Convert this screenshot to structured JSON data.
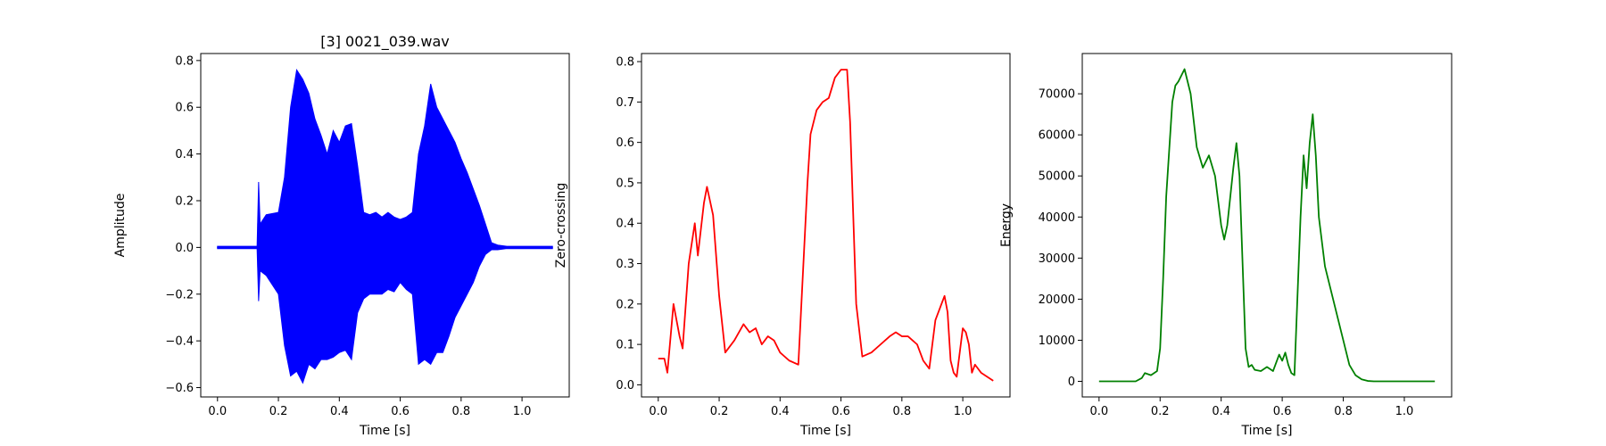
{
  "chart_data": [
    {
      "type": "line",
      "title": "[3] 0021_039.wav",
      "xlabel": "Time [s]",
      "ylabel": "Amplitude",
      "xlim": [
        -0.055,
        1.155
      ],
      "ylim": [
        -0.64,
        0.83
      ],
      "xticks": [
        0.0,
        0.2,
        0.4,
        0.6,
        0.8,
        1.0
      ],
      "xtick_labels": [
        "0.0",
        "0.2",
        "0.4",
        "0.6",
        "0.8",
        "1.0"
      ],
      "yticks": [
        -0.6,
        -0.4,
        -0.2,
        0.0,
        0.2,
        0.4,
        0.6,
        0.8
      ],
      "ytick_labels": [
        "−0.6",
        "−0.4",
        "−0.2",
        "0.0",
        "0.2",
        "0.4",
        "0.6",
        "0.8"
      ],
      "color": "#0000ff",
      "waveform": true,
      "series": [
        {
          "x": [
            0.0,
            0.13,
            0.135,
            0.14,
            0.16,
            0.2,
            0.22,
            0.24,
            0.26,
            0.28,
            0.3,
            0.32,
            0.34,
            0.36,
            0.38,
            0.4,
            0.42,
            0.44,
            0.46,
            0.48,
            0.5,
            0.52,
            0.54,
            0.56,
            0.58,
            0.6,
            0.62,
            0.64,
            0.66,
            0.68,
            0.7,
            0.72,
            0.74,
            0.76,
            0.78,
            0.8,
            0.82,
            0.84,
            0.86,
            0.88,
            0.9,
            0.92,
            0.95,
            1.0,
            1.1
          ],
          "upper": [
            0.005,
            0.005,
            0.28,
            0.1,
            0.14,
            0.15,
            0.3,
            0.6,
            0.76,
            0.72,
            0.66,
            0.55,
            0.48,
            0.4,
            0.5,
            0.45,
            0.52,
            0.53,
            0.35,
            0.15,
            0.14,
            0.15,
            0.13,
            0.15,
            0.13,
            0.12,
            0.13,
            0.15,
            0.4,
            0.52,
            0.7,
            0.6,
            0.55,
            0.5,
            0.45,
            0.38,
            0.32,
            0.25,
            0.18,
            0.1,
            0.02,
            0.01,
            0.005,
            0.005,
            0.005
          ],
          "lower": [
            -0.005,
            -0.005,
            -0.23,
            -0.1,
            -0.12,
            -0.2,
            -0.42,
            -0.55,
            -0.53,
            -0.58,
            -0.5,
            -0.52,
            -0.48,
            -0.48,
            -0.47,
            -0.45,
            -0.44,
            -0.48,
            -0.28,
            -0.22,
            -0.2,
            -0.2,
            -0.2,
            -0.18,
            -0.19,
            -0.15,
            -0.18,
            -0.2,
            -0.5,
            -0.48,
            -0.5,
            -0.45,
            -0.45,
            -0.38,
            -0.3,
            -0.25,
            -0.2,
            -0.15,
            -0.08,
            -0.03,
            -0.01,
            -0.01,
            -0.005,
            -0.005,
            -0.005
          ]
        }
      ]
    },
    {
      "type": "line",
      "title": "",
      "xlabel": "Time [s]",
      "ylabel": "Zero-crossing",
      "xlim": [
        -0.055,
        1.155
      ],
      "ylim": [
        -0.03,
        0.82
      ],
      "xticks": [
        0.0,
        0.2,
        0.4,
        0.6,
        0.8,
        1.0
      ],
      "xtick_labels": [
        "0.0",
        "0.2",
        "0.4",
        "0.6",
        "0.8",
        "1.0"
      ],
      "yticks": [
        0.0,
        0.1,
        0.2,
        0.3,
        0.4,
        0.5,
        0.6,
        0.7,
        0.8
      ],
      "ytick_labels": [
        "0.0",
        "0.1",
        "0.2",
        "0.3",
        "0.4",
        "0.5",
        "0.6",
        "0.7",
        "0.8"
      ],
      "color": "#ff0000",
      "series": [
        {
          "x": [
            0.0,
            0.02,
            0.03,
            0.05,
            0.07,
            0.08,
            0.1,
            0.12,
            0.13,
            0.15,
            0.16,
            0.18,
            0.2,
            0.22,
            0.25,
            0.28,
            0.3,
            0.32,
            0.34,
            0.36,
            0.38,
            0.4,
            0.43,
            0.46,
            0.47,
            0.49,
            0.5,
            0.52,
            0.54,
            0.56,
            0.58,
            0.6,
            0.62,
            0.63,
            0.65,
            0.67,
            0.7,
            0.73,
            0.76,
            0.78,
            0.8,
            0.82,
            0.85,
            0.87,
            0.89,
            0.91,
            0.93,
            0.94,
            0.95,
            0.96,
            0.97,
            0.98,
            1.0,
            1.01,
            1.02,
            1.03,
            1.04,
            1.06,
            1.08,
            1.1
          ],
          "y": [
            0.065,
            0.065,
            0.03,
            0.2,
            0.12,
            0.09,
            0.3,
            0.4,
            0.32,
            0.45,
            0.49,
            0.42,
            0.22,
            0.08,
            0.11,
            0.15,
            0.13,
            0.14,
            0.1,
            0.12,
            0.11,
            0.08,
            0.06,
            0.05,
            0.2,
            0.5,
            0.62,
            0.68,
            0.7,
            0.71,
            0.76,
            0.78,
            0.78,
            0.65,
            0.2,
            0.07,
            0.08,
            0.1,
            0.12,
            0.13,
            0.12,
            0.12,
            0.1,
            0.06,
            0.04,
            0.16,
            0.2,
            0.22,
            0.18,
            0.06,
            0.03,
            0.02,
            0.14,
            0.13,
            0.1,
            0.03,
            0.05,
            0.03,
            0.02,
            0.01
          ]
        }
      ]
    },
    {
      "type": "line",
      "title": "",
      "xlabel": "Time [s]",
      "ylabel": "Energy",
      "xlim": [
        -0.055,
        1.155
      ],
      "ylim": [
        -3800,
        79800
      ],
      "xticks": [
        0.0,
        0.2,
        0.4,
        0.6,
        0.8,
        1.0
      ],
      "xtick_labels": [
        "0.0",
        "0.2",
        "0.4",
        "0.6",
        "0.8",
        "1.0"
      ],
      "yticks": [
        0,
        10000,
        20000,
        30000,
        40000,
        50000,
        60000,
        70000
      ],
      "ytick_labels": [
        "0",
        "10000",
        "20000",
        "30000",
        "40000",
        "50000",
        "60000",
        "70000"
      ],
      "color": "#008000",
      "series": [
        {
          "x": [
            0.0,
            0.12,
            0.14,
            0.15,
            0.17,
            0.19,
            0.2,
            0.21,
            0.22,
            0.24,
            0.25,
            0.26,
            0.28,
            0.3,
            0.32,
            0.34,
            0.36,
            0.38,
            0.4,
            0.41,
            0.42,
            0.44,
            0.45,
            0.46,
            0.48,
            0.49,
            0.5,
            0.51,
            0.53,
            0.55,
            0.57,
            0.59,
            0.6,
            0.61,
            0.62,
            0.63,
            0.64,
            0.66,
            0.67,
            0.68,
            0.69,
            0.7,
            0.71,
            0.72,
            0.74,
            0.76,
            0.78,
            0.8,
            0.82,
            0.84,
            0.86,
            0.88,
            0.9,
            1.0,
            1.1
          ],
          "y": [
            0,
            0,
            800,
            2000,
            1500,
            2500,
            8000,
            25000,
            45000,
            68000,
            72000,
            73000,
            76000,
            70000,
            57000,
            52000,
            55000,
            50000,
            38000,
            34500,
            38000,
            52000,
            58000,
            50000,
            8000,
            3500,
            4000,
            2800,
            2500,
            3500,
            2500,
            6500,
            5000,
            7000,
            4000,
            2000,
            1500,
            40000,
            55000,
            47000,
            58000,
            65000,
            55000,
            40000,
            28000,
            22000,
            16000,
            10000,
            4000,
            1500,
            500,
            100,
            0,
            0,
            0
          ]
        }
      ]
    }
  ]
}
